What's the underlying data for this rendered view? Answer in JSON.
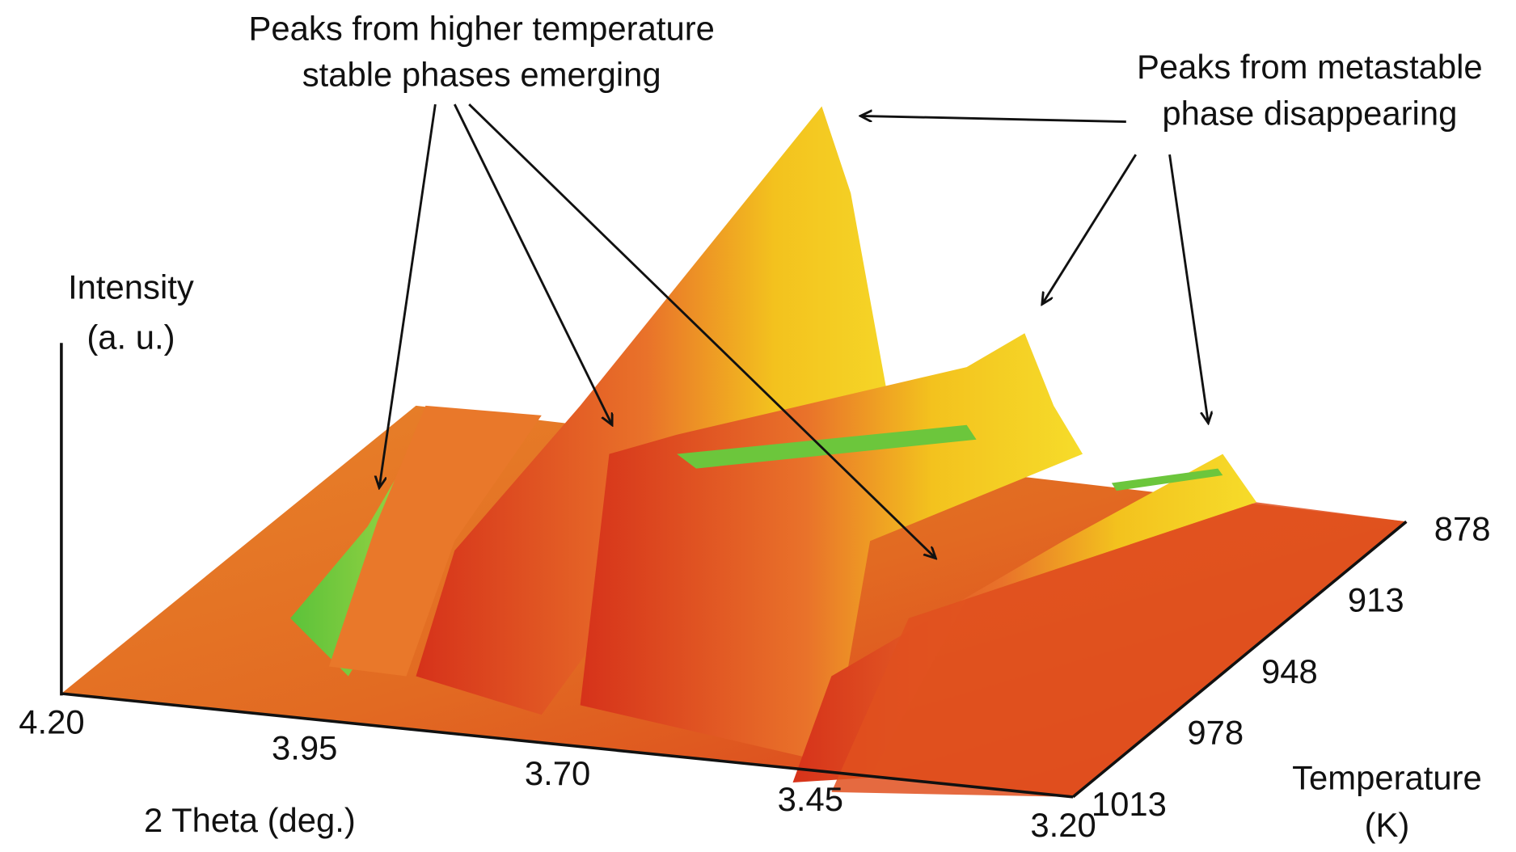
{
  "chart_data": {
    "type": "surface3d",
    "annotations": [
      {
        "lines": [
          "Peaks from higher temperature",
          "stable phases emerging"
        ]
      },
      {
        "lines": [
          "Peaks from metastable",
          "phase disappearing"
        ]
      }
    ],
    "zlabel": [
      "Intensity",
      "(a. u.)"
    ],
    "xlabel": "2 Theta (deg.)",
    "ylabel": [
      "Temperature",
      "(K)"
    ],
    "xlim": [
      4.2,
      3.2
    ],
    "xticks": [
      {
        "value": 4.2,
        "label": "4.20"
      },
      3.95,
      {
        "value": 3.7,
        "label": "3.70"
      },
      3.45,
      {
        "value": 3.2,
        "label": "3.20"
      }
    ],
    "ylim": [
      878,
      1013
    ],
    "yticks": [
      878,
      913,
      948,
      978,
      1013
    ]
  }
}
